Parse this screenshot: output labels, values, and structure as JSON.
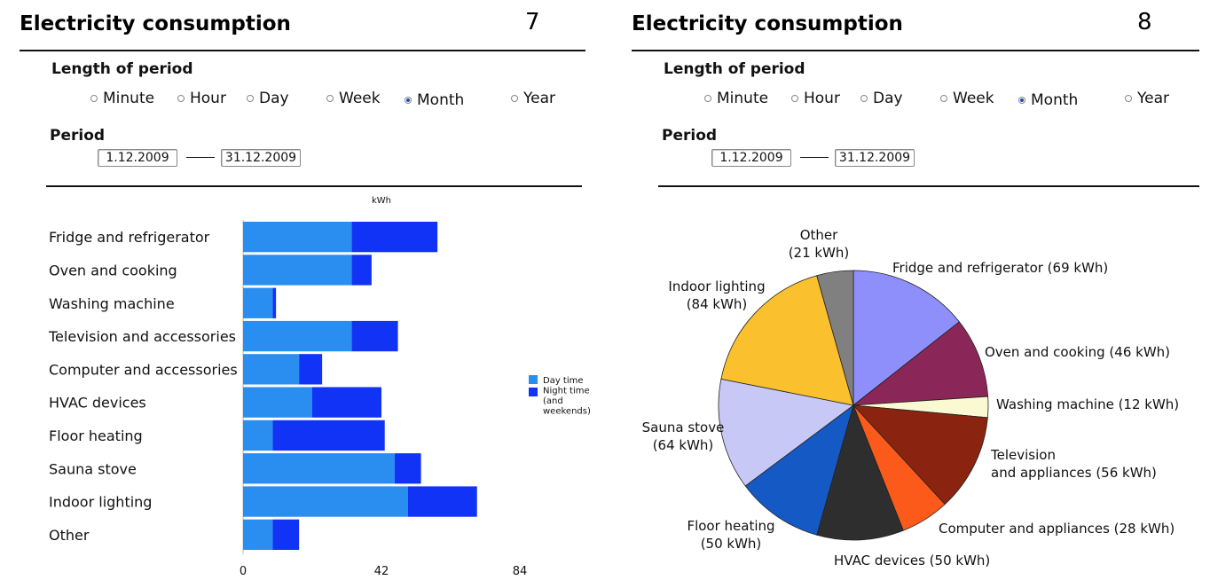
{
  "left": {
    "title": "Electricity consumption",
    "slide_number": "7",
    "period_length_label": "Length of period",
    "options": [
      "Minute",
      "Hour",
      "Day",
      "Week",
      "Month",
      "Year"
    ],
    "selected_option": "Month",
    "period_label": "Period",
    "period_start": "1.12.2009",
    "period_end": "31.12.2009"
  },
  "right": {
    "title": "Electricity consumption",
    "slide_number": "8",
    "period_length_label": "Length of period",
    "options": [
      "Minute",
      "Hour",
      "Day",
      "Week",
      "Month",
      "Year"
    ],
    "selected_option": "Month",
    "period_label": "Period",
    "period_start": "1.12.2009",
    "period_end": "31.12.2009"
  },
  "chart_data": [
    {
      "type": "bar",
      "orientation": "horizontal",
      "stacked": true,
      "title": "kWh",
      "categories": [
        "Fridge and refrigerator",
        "Oven and cooking",
        "Washing machine",
        "Television and accessories",
        "Computer and accessories",
        "HVAC devices",
        "Floor heating",
        "Sauna stove",
        "Indoor lighting",
        "Other"
      ],
      "series": [
        {
          "name": "Day time",
          "color": "#2a8df0",
          "values": [
            33,
            33,
            9,
            33,
            17,
            21,
            9,
            46,
            50,
            9
          ]
        },
        {
          "name": "Night time (and weekends)",
          "color": "#1133f5",
          "values": [
            26,
            6,
            1,
            14,
            7,
            21,
            34,
            8,
            21,
            8
          ]
        }
      ],
      "xlim": [
        0,
        84
      ],
      "xticks": [
        "0",
        "42",
        "84"
      ],
      "legend": "right",
      "legend_labels": [
        "Day time",
        "Night time",
        "(and",
        "weekends)"
      ]
    },
    {
      "type": "pie",
      "slices": [
        {
          "label": "Fridge and refrigerator (69 kWh)",
          "value": 69,
          "color": "#8f8ffb"
        },
        {
          "label": "Oven and cooking (46 kWh)",
          "value": 46,
          "color": "#8a2758"
        },
        {
          "label": "Washing machine (12 kWh)",
          "value": 12,
          "color": "#fbf9d2"
        },
        {
          "label": "Television and appliances (56 kWh)",
          "value": 56,
          "color": "#8a2410"
        },
        {
          "label": "Computer and appliances (28 kWh)",
          "value": 28,
          "color": "#fb5a1a"
        },
        {
          "label": "HVAC devices (50 kWh)",
          "value": 50,
          "color": "#2e2e2e"
        },
        {
          "label": "Floor heating (50 kWh)",
          "value": 50,
          "color": "#155ac4"
        },
        {
          "label": "Sauna stove (64 kWh)",
          "value": 64,
          "color": "#c8c8f7"
        },
        {
          "label": "Indoor lighting (84 kWh)",
          "value": 84,
          "color": "#fbc02d"
        },
        {
          "label": "Other (21 kWh)",
          "value": 21,
          "color": "#808080"
        }
      ],
      "label_lines": [
        [
          "Fridge and refrigerator (69 kWh)"
        ],
        [
          "Oven and cooking  (46 kWh)"
        ],
        [
          "Washing machine (12 kWh)"
        ],
        [
          "Television",
          "and appliances (56 kWh)"
        ],
        [
          "Computer and appliances  (28 kWh)"
        ],
        [
          "HVAC devices (50 kWh)"
        ],
        [
          "Floor heating",
          "(50 kWh)"
        ],
        [
          "Sauna stove",
          "(64 kWh)"
        ],
        [
          "Indoor lighting",
          "(84 kWh)"
        ],
        [
          "Other",
          "(21 kWh)"
        ]
      ]
    }
  ]
}
